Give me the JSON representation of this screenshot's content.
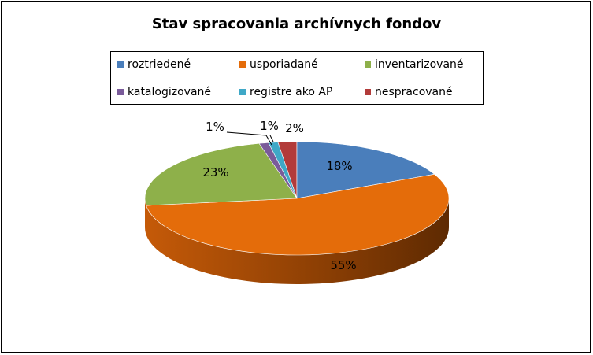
{
  "chart_data": {
    "type": "pie",
    "title": "Stav spracovania archívnych fondov",
    "categories": [
      "roztriedené",
      "usporiadané",
      "inventarizované",
      "katalogizované",
      "registre ako AP",
      "nespracované"
    ],
    "values": [
      18,
      55,
      23,
      1,
      1,
      2
    ],
    "labels": [
      "18%",
      "55%",
      "23%",
      "1%",
      "1%",
      "2%"
    ],
    "colors": [
      "#4A7EBB",
      "#E46C0A",
      "#8EB04A",
      "#7A5B9A",
      "#3FA8C7",
      "#B23B3A"
    ],
    "legend_position": "top",
    "three_d": true
  }
}
